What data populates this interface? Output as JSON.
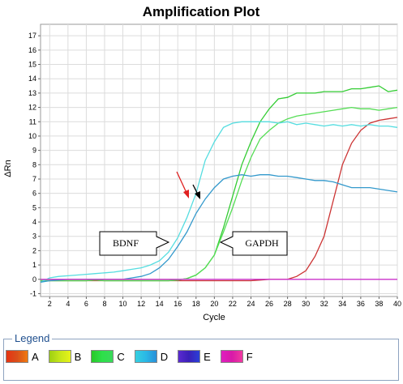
{
  "chart_data": {
    "type": "line",
    "title": "Amplification Plot",
    "xlabel": "Cycle",
    "ylabel": "ΔRn",
    "xlim": [
      1,
      40
    ],
    "ylim": [
      -1.2,
      17.8
    ],
    "x_ticks": [
      2,
      4,
      6,
      8,
      10,
      12,
      14,
      16,
      18,
      20,
      22,
      24,
      26,
      28,
      30,
      32,
      34,
      36,
      38,
      40
    ],
    "y_ticks": [
      -1,
      0,
      1,
      2,
      3,
      4,
      5,
      6,
      7,
      8,
      9,
      10,
      11,
      12,
      13,
      14,
      15,
      16,
      17
    ],
    "grid": true,
    "x": [
      1,
      2,
      3,
      4,
      5,
      6,
      7,
      8,
      9,
      10,
      11,
      12,
      13,
      14,
      15,
      16,
      17,
      18,
      19,
      20,
      21,
      22,
      23,
      24,
      25,
      26,
      27,
      28,
      29,
      30,
      31,
      32,
      33,
      34,
      35,
      36,
      37,
      38,
      39,
      40
    ],
    "series": [
      {
        "color": "#cc3333",
        "values": [
          -0.1,
          -0.1,
          -0.1,
          -0.1,
          -0.1,
          -0.1,
          -0.1,
          -0.1,
          -0.1,
          -0.1,
          -0.1,
          -0.1,
          -0.1,
          -0.1,
          -0.1,
          -0.1,
          -0.1,
          -0.1,
          -0.1,
          -0.1,
          -0.1,
          -0.1,
          -0.1,
          -0.1,
          -0.05,
          0,
          0,
          0,
          0.2,
          0.6,
          1.6,
          3.0,
          5.5,
          8.0,
          9.5,
          10.4,
          10.9,
          11.1,
          11.2,
          11.3
        ]
      },
      {
        "color": "#33cc33",
        "values": [
          -0.1,
          -0.1,
          -0.1,
          -0.1,
          -0.1,
          -0.1,
          -0.05,
          -0.1,
          -0.1,
          -0.1,
          -0.1,
          -0.1,
          -0.1,
          -0.1,
          -0.1,
          -0.05,
          0.05,
          0.3,
          0.8,
          1.7,
          3.6,
          5.8,
          8.0,
          9.6,
          11.0,
          11.9,
          12.6,
          12.7,
          13.0,
          13.0,
          13.0,
          13.1,
          13.1,
          13.1,
          13.3,
          13.3,
          13.4,
          13.5,
          13.1,
          13.2
        ]
      },
      {
        "color": "#55dd55",
        "values": [
          -0.1,
          -0.1,
          -0.1,
          -0.1,
          -0.1,
          -0.1,
          -0.05,
          -0.1,
          -0.1,
          -0.1,
          -0.1,
          -0.1,
          -0.1,
          -0.1,
          -0.1,
          -0.05,
          0.05,
          0.3,
          0.8,
          1.7,
          3.3,
          5.0,
          6.9,
          8.5,
          9.8,
          10.4,
          10.9,
          11.2,
          11.4,
          11.5,
          11.6,
          11.7,
          11.8,
          11.9,
          12.0,
          11.9,
          11.9,
          11.8,
          11.9,
          12.0
        ]
      },
      {
        "color": "#55dde0",
        "values": [
          -0.2,
          0.1,
          0.2,
          0.25,
          0.3,
          0.35,
          0.4,
          0.45,
          0.5,
          0.6,
          0.7,
          0.8,
          1.0,
          1.3,
          1.9,
          2.9,
          4.3,
          6.0,
          8.3,
          9.6,
          10.6,
          10.9,
          11.0,
          11.0,
          11.0,
          11.0,
          10.9,
          11.0,
          10.8,
          10.9,
          10.8,
          10.7,
          10.8,
          10.7,
          10.8,
          10.7,
          10.8,
          10.7,
          10.7,
          10.6
        ]
      },
      {
        "color": "#3399cc",
        "values": [
          -0.2,
          -0.1,
          -0.05,
          0,
          0,
          0,
          0,
          0,
          0,
          0,
          0.1,
          0.2,
          0.4,
          0.8,
          1.4,
          2.3,
          3.3,
          4.6,
          5.6,
          6.4,
          7.0,
          7.2,
          7.3,
          7.2,
          7.3,
          7.3,
          7.2,
          7.2,
          7.1,
          7.0,
          6.9,
          6.9,
          6.8,
          6.6,
          6.4,
          6.4,
          6.4,
          6.3,
          6.2,
          6.1
        ]
      },
      {
        "color": "#cc33cc",
        "values": [
          0,
          0,
          0,
          0,
          0,
          0,
          0,
          0,
          0,
          0,
          0,
          0,
          0,
          0,
          0,
          0,
          0,
          0,
          0,
          0,
          0,
          0,
          0,
          0,
          0,
          0,
          0,
          0,
          0,
          0,
          0,
          0,
          0,
          0,
          0,
          0,
          0,
          0,
          0,
          0
        ]
      }
    ],
    "annotations": [
      {
        "text": "BDNF",
        "arrow": "right"
      },
      {
        "text": "GAPDH",
        "arrow": "left"
      }
    ]
  },
  "legend": {
    "title": "Legend",
    "items": [
      {
        "label": "A",
        "colors": [
          "#e63312",
          "#d94f1a",
          "#f07a10"
        ]
      },
      {
        "label": "B",
        "colors": [
          "#9ecf13",
          "#c6e61a",
          "#e6f21a"
        ]
      },
      {
        "label": "C",
        "colors": [
          "#28c828",
          "#2de04a",
          "#3ad85a"
        ]
      },
      {
        "label": "D",
        "colors": [
          "#36d0e0",
          "#2ab8e6",
          "#2a8fd8"
        ]
      },
      {
        "label": "E",
        "colors": [
          "#5a2ad0",
          "#3a20b8",
          "#2a40d8"
        ]
      },
      {
        "label": "F",
        "colors": [
          "#e020c0",
          "#d81aa8",
          "#f03aa0"
        ]
      }
    ]
  }
}
